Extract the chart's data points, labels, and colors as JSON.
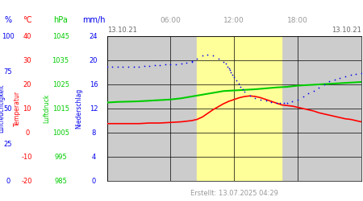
{
  "title_left": "13.10.21",
  "title_right": "13.10.21",
  "xlabel_times": [
    "06:00",
    "12:00",
    "18:00"
  ],
  "yellow_start": 8.5,
  "yellow_end": 16.5,
  "colors": {
    "blue": "#0000EE",
    "red": "#FF0000",
    "green": "#00CC00",
    "gray_bg": "#CCCCCC",
    "yellow_bg": "#FFFF99",
    "text_gray": "#999999",
    "date_color": "#666666",
    "grid_color": "#000000"
  },
  "humidity_hours": [
    0,
    0.5,
    1,
    1.5,
    2,
    2.5,
    3,
    3.5,
    4,
    4.5,
    5,
    5.5,
    6,
    6.5,
    7,
    7.5,
    8,
    8.0,
    8.5,
    9,
    9.5,
    10,
    10.5,
    11,
    11.2,
    11.4,
    11.5,
    11.6,
    11.7,
    11.8,
    12.0,
    12.2,
    12.4,
    12.6,
    12.8,
    13.0,
    13.5,
    14.0,
    14.5,
    15.0,
    15.5,
    16.0,
    16.3,
    16.7,
    17.0,
    17.5,
    18,
    18.5,
    19,
    19.5,
    20,
    20.5,
    21,
    21.5,
    22,
    22.5,
    23,
    23.5,
    24
  ],
  "humidity_vals": [
    19.0,
    19.0,
    19.0,
    19.0,
    19.0,
    19.0,
    19.0,
    19.1,
    19.1,
    19.2,
    19.2,
    19.3,
    19.3,
    19.4,
    19.5,
    19.6,
    19.8,
    19.9,
    20.3,
    20.8,
    21.0,
    20.8,
    20.3,
    19.8,
    19.5,
    19.0,
    18.7,
    18.4,
    18.0,
    17.6,
    17.2,
    16.7,
    16.2,
    15.6,
    15.2,
    14.8,
    14.2,
    13.8,
    13.5,
    13.3,
    13.1,
    13.0,
    13.0,
    13.0,
    13.0,
    13.2,
    13.5,
    14.0,
    14.5,
    15.0,
    15.5,
    16.0,
    16.5,
    16.8,
    17.1,
    17.4,
    17.6,
    17.8,
    17.9
  ],
  "temp_hours": [
    0,
    1,
    2,
    3,
    4,
    5,
    6,
    7,
    8,
    8.5,
    9,
    9.5,
    10,
    10.5,
    11,
    11.5,
    12,
    12.5,
    13,
    13.5,
    14,
    14.5,
    15,
    15.5,
    16,
    16.5,
    17,
    17.5,
    18,
    18.5,
    19,
    19.5,
    20,
    20.5,
    21,
    21.5,
    22,
    22.5,
    23,
    23.5,
    24
  ],
  "temp_vals": [
    9.5,
    9.5,
    9.5,
    9.5,
    9.6,
    9.6,
    9.7,
    9.8,
    10.0,
    10.2,
    10.6,
    11.2,
    11.8,
    12.3,
    12.8,
    13.2,
    13.5,
    13.8,
    14.0,
    14.1,
    14.0,
    13.8,
    13.5,
    13.2,
    12.9,
    12.6,
    12.5,
    12.4,
    12.2,
    12.0,
    11.8,
    11.6,
    11.3,
    11.1,
    10.9,
    10.7,
    10.5,
    10.3,
    10.2,
    10.0,
    9.8
  ],
  "pres_hours": [
    0,
    1,
    2,
    3,
    4,
    5,
    6,
    7,
    8,
    9,
    10,
    11,
    12,
    13,
    14,
    15,
    16,
    17,
    18,
    19,
    20,
    21,
    22,
    23,
    24
  ],
  "pres_vals": [
    13.0,
    13.1,
    13.15,
    13.2,
    13.3,
    13.4,
    13.5,
    13.7,
    14.0,
    14.3,
    14.6,
    14.9,
    15.0,
    15.1,
    15.2,
    15.35,
    15.5,
    15.6,
    15.8,
    15.9,
    16.0,
    16.1,
    16.2,
    16.3,
    16.4
  ],
  "created_text": "Erstellt: 13.07.2025 04:29",
  "ymin": 0,
  "ymax": 24,
  "xmin": 0,
  "xmax": 24,
  "yticks_mmh": [
    0,
    4,
    8,
    12,
    16,
    20,
    24
  ],
  "xticks_h": [
    0,
    6,
    12,
    18,
    24
  ],
  "pct_vals": [
    0,
    25,
    50,
    75,
    100
  ],
  "pct_scale": [
    0,
    100
  ],
  "celsius_vals": [
    -20,
    -10,
    0,
    10,
    20,
    30,
    40
  ],
  "celsius_scale": [
    -20,
    40
  ],
  "hpa_vals": [
    985,
    995,
    1005,
    1015,
    1025,
    1035,
    1045
  ],
  "hpa_scale": [
    985,
    1045
  ],
  "mmh_vals": [
    0,
    4,
    8,
    12,
    16,
    20,
    24
  ],
  "mmh_scale": [
    0,
    24
  ]
}
